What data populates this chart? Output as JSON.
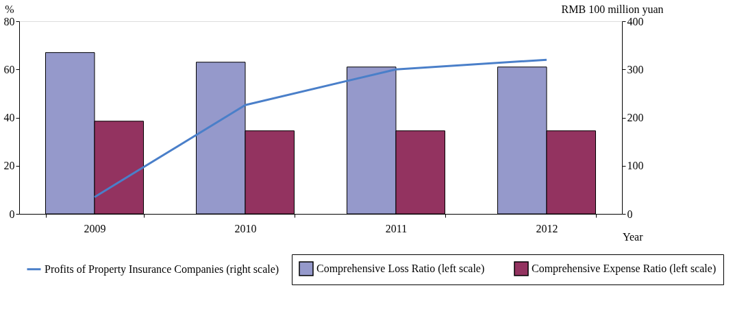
{
  "chart_data": {
    "type": "bar",
    "categories": [
      "2009",
      "2010",
      "2011",
      "2012"
    ],
    "xlabel": "Year",
    "ylabel": "%",
    "y2label": "RMB 100 million yuan",
    "series": [
      {
        "name": "Comprehensive Loss Ratio (left scale)",
        "color": "#9599cb",
        "values": [
          67,
          63,
          61,
          61
        ]
      },
      {
        "name": "Comprehensive Expense Ratio (left scale)",
        "color": "#933360",
        "values": [
          38.5,
          34.5,
          34.5,
          34.5
        ]
      },
      {
        "name": "Profits of Property Insurance Companies (right scale)",
        "type": "line",
        "axis": "y2",
        "color": "#4a7fc9",
        "values": [
          35,
          226,
          300,
          320
        ]
      }
    ],
    "ylim": [
      0,
      80
    ],
    "yticks": [
      0,
      20,
      40,
      60,
      80
    ],
    "y2lim": [
      0,
      400
    ],
    "y2ticks": [
      0,
      100,
      200,
      300,
      400
    ],
    "grid": false,
    "legend": "bottom"
  }
}
